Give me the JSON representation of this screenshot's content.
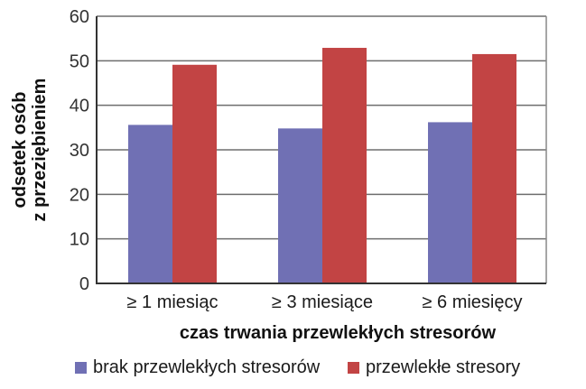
{
  "chart_data": {
    "type": "bar",
    "title": "",
    "xlabel": "czas trwania przewlekłych stresorów",
    "ylabel": [
      "odsetek osób",
      "z przeziębieniem"
    ],
    "categories": [
      "≥ 1 miesiąc",
      "≥ 3 miesiące",
      "≥ 6 miesięcy"
    ],
    "series": [
      {
        "name": "brak przewlekłych stresorów",
        "color": "#7070b4",
        "values": [
          35.6,
          34.8,
          36.2
        ]
      },
      {
        "name": "przewlekłe stresory",
        "color": "#c24444",
        "values": [
          49.1,
          52.9,
          51.5
        ]
      }
    ],
    "ylim": [
      0,
      60
    ],
    "yticks": [
      0,
      10,
      20,
      30,
      40,
      50,
      60
    ],
    "grid": true,
    "legend_position": "bottom"
  },
  "legend": {
    "items": [
      {
        "label": "brak przewlekłych stresorów",
        "color": "#7070b4"
      },
      {
        "label": "przewlekłe stresory",
        "color": "#c24444"
      }
    ]
  }
}
